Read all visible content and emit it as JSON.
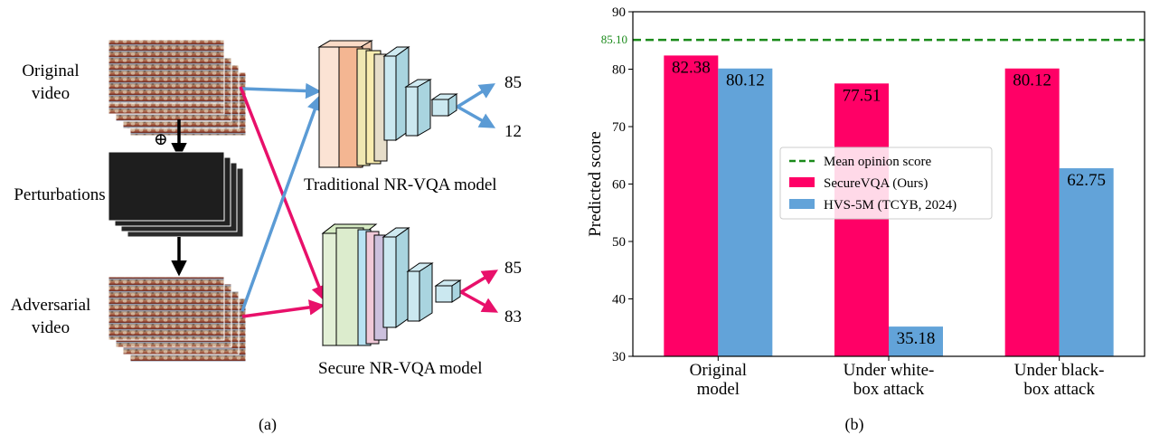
{
  "panel_a": {
    "caption": "(a)",
    "original_label": [
      "Original",
      "video"
    ],
    "perturbations_label": "Perturbations",
    "adversarial_label": [
      "Adversarial",
      "video"
    ],
    "plus_symbol": "⊕",
    "traditional_model_label": "Traditional NR-VQA model",
    "secure_model_label": "Secure NR-VQA model",
    "traditional_outputs": [
      "85",
      "12"
    ],
    "secure_outputs": [
      "85",
      "83"
    ],
    "colors": {
      "blue_arrow": "#5b9bd5",
      "pink_arrow": "#e8106a"
    }
  },
  "panel_b": {
    "caption": "(b)"
  },
  "chart_data": {
    "type": "bar",
    "categories": [
      "Original model",
      "Under white-box attack",
      "Under black-box attack"
    ],
    "category_lines": [
      [
        "Original",
        "model"
      ],
      [
        "Under white-",
        "box attack"
      ],
      [
        "Under black-",
        "box attack"
      ]
    ],
    "series": [
      {
        "name": "SecureVQA (Ours)",
        "values": [
          82.38,
          77.51,
          80.12
        ],
        "labels": [
          "82.38",
          "77.51",
          "80.12"
        ],
        "color": "#ff0066"
      },
      {
        "name": "HVS-5M (TCYB, 2024)",
        "values": [
          80.12,
          35.18,
          62.75
        ],
        "labels": [
          "80.12",
          "35.18",
          "62.75"
        ],
        "color": "#62a3d9"
      }
    ],
    "reference_line": {
      "name": "Mean opinion score",
      "value": 85.1,
      "label": "85.10",
      "color": "#1a8a1a"
    },
    "ylabel": "Predicted score",
    "ylim": [
      30,
      90
    ],
    "yticks": [
      "30",
      "40",
      "50",
      "60",
      "70",
      "80",
      "90"
    ],
    "legend_position": "center",
    "grid": false
  }
}
